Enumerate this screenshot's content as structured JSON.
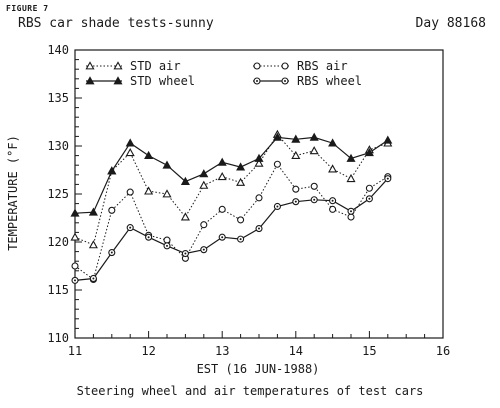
{
  "figure_label": "FIGURE 7",
  "title": "RBS car shade tests-sunny",
  "day_label": "Day 88168",
  "caption": "Steering wheel and air temperatures of test cars",
  "chart_data": {
    "type": "line",
    "title": "RBS car shade tests-sunny",
    "xlabel": "EST (16 JUN-1988)",
    "ylabel": "TEMPERATURE (°F)",
    "xlim": [
      11,
      16
    ],
    "ylim": [
      110,
      140
    ],
    "xticks": [
      "11",
      "12",
      "13",
      "14",
      "15",
      "16"
    ],
    "yticks": [
      "110",
      "115",
      "120",
      "125",
      "130",
      "135",
      "140"
    ],
    "grid": false,
    "legend": "top",
    "series": [
      {
        "name": "STD air",
        "marker": "open-triangle",
        "line": "dotted",
        "x": [
          11,
          11.25,
          11.5,
          11.75,
          12,
          12.25,
          12.5,
          12.75,
          13,
          13.25,
          13.5,
          13.75,
          14,
          14.25,
          14.5,
          14.75,
          15,
          15.25
        ],
        "y": [
          120.5,
          119.7,
          127.4,
          129.3,
          125.3,
          125.0,
          122.6,
          125.9,
          126.8,
          126.2,
          128.2,
          131.2,
          129.0,
          129.5,
          127.6,
          126.6,
          129.6,
          130.3
        ]
      },
      {
        "name": "STD wheel",
        "marker": "filled-triangle",
        "line": "solid",
        "x": [
          11,
          11.25,
          11.5,
          11.75,
          12,
          12.25,
          12.5,
          12.75,
          13,
          13.25,
          13.5,
          13.75,
          14,
          14.25,
          14.5,
          14.75,
          15,
          15.25
        ],
        "y": [
          123.0,
          123.1,
          127.4,
          130.3,
          129.0,
          128.0,
          126.3,
          127.1,
          128.3,
          127.8,
          128.7,
          130.9,
          130.7,
          130.9,
          130.3,
          128.7,
          129.3,
          130.6
        ]
      },
      {
        "name": "RBS air",
        "marker": "open-circle",
        "line": "dotted",
        "x": [
          11,
          11.25,
          11.5,
          11.75,
          12,
          12.25,
          12.5,
          12.75,
          13,
          13.25,
          13.5,
          13.75,
          14,
          14.25,
          14.5,
          14.75,
          15,
          15.25
        ],
        "y": [
          117.5,
          116.1,
          123.3,
          125.2,
          120.7,
          120.2,
          118.3,
          121.8,
          123.4,
          122.3,
          124.6,
          128.1,
          125.5,
          125.8,
          123.4,
          122.6,
          125.6,
          126.8
        ]
      },
      {
        "name": "RBS wheel",
        "marker": "circle",
        "line": "solid",
        "x": [
          11,
          11.25,
          11.5,
          11.75,
          12,
          12.25,
          12.5,
          12.75,
          13,
          13.25,
          13.5,
          13.75,
          14,
          14.25,
          14.5,
          14.75,
          15,
          15.25
        ],
        "y": [
          116.0,
          116.2,
          118.9,
          121.5,
          120.5,
          119.6,
          118.8,
          119.2,
          120.5,
          120.3,
          121.4,
          123.7,
          124.2,
          124.4,
          124.3,
          123.2,
          124.5,
          126.6
        ]
      }
    ]
  }
}
